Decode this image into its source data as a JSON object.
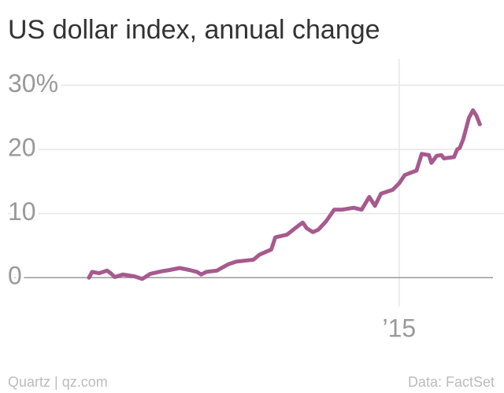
{
  "chart_data": {
    "type": "line",
    "title": "US dollar index, annual change",
    "source": "Data: FactSet",
    "credit": "Quartz | qz.com",
    "color": "#a65a8e",
    "grid": true,
    "xlim": [
      2014.03,
      2015.26
    ],
    "xticks": [
      {
        "value": 2015,
        "label": "’15"
      }
    ],
    "ylim": [
      -4.5,
      34.1
    ],
    "yticks": [
      0,
      10,
      20,
      {
        "value": 30,
        "label": "30%"
      }
    ],
    "series": [
      {
        "name": "US dollar index",
        "color": "#a65a8e",
        "x": [
          2014.231,
          2014.239,
          2014.256,
          2014.276,
          2014.285,
          2014.295,
          2014.315,
          2014.344,
          2014.363,
          2014.383,
          2014.412,
          2014.431,
          2014.456,
          2014.48,
          2014.499,
          2014.509,
          2014.522,
          2014.548,
          2014.577,
          2014.596,
          2014.625,
          2014.639,
          2014.654,
          2014.683,
          2014.693,
          2014.722,
          2014.742,
          2014.761,
          2014.771,
          2014.786,
          2014.8,
          2014.819,
          2014.839,
          2014.858,
          2014.887,
          2014.907,
          2014.926,
          2014.94,
          2014.955,
          2014.984,
          2015.0,
          2015.014,
          2015.043,
          2015.056,
          2015.074,
          2015.08,
          2015.093,
          2015.105,
          2015.111,
          2015.136,
          2015.144,
          2015.15,
          2015.159,
          2015.173,
          2015.183,
          2015.192,
          2015.2
        ],
        "values": [
          0,
          0.9,
          0.7,
          1.1,
          0.7,
          0.1,
          0.5,
          0.2,
          -0.2,
          0.6,
          1.0,
          1.2,
          1.5,
          1.2,
          0.9,
          0.5,
          0.9,
          1.1,
          2.1,
          2.5,
          2.7,
          2.8,
          3.6,
          4.4,
          6.3,
          6.7,
          7.7,
          8.6,
          7.7,
          7.1,
          7.5,
          8.8,
          10.6,
          10.6,
          10.9,
          10.6,
          12.6,
          11.2,
          13.1,
          13.7,
          14.7,
          16.0,
          16.7,
          19.3,
          19.1,
          17.9,
          19.0,
          19.1,
          18.6,
          18.8,
          20.0,
          20.2,
          21.6,
          24.9,
          26.1,
          25.2,
          23.9
        ]
      }
    ]
  }
}
